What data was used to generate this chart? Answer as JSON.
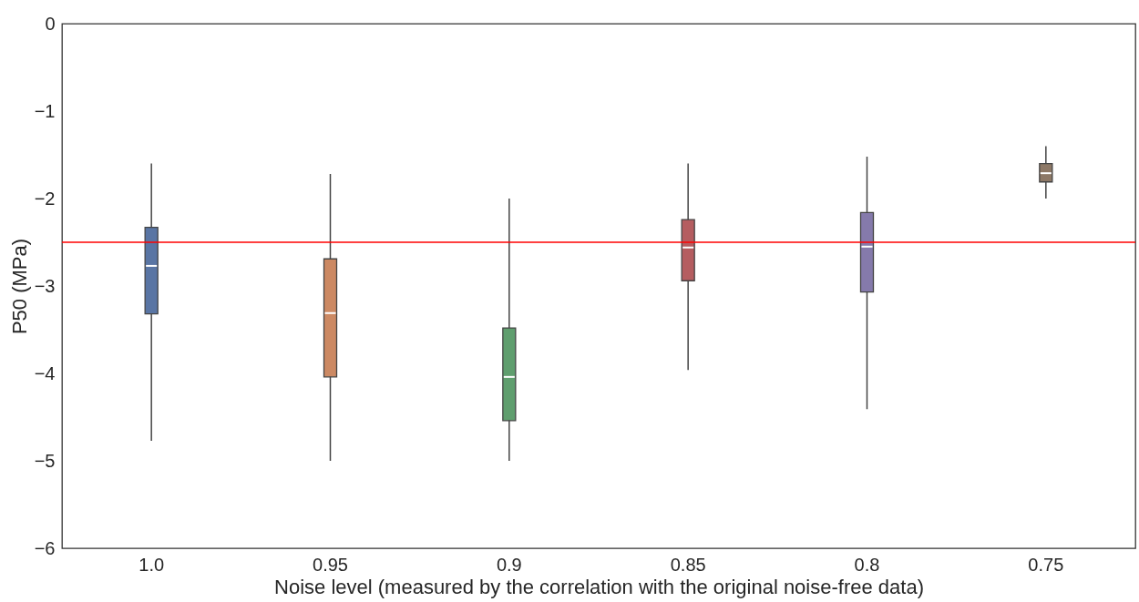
{
  "chart_data": {
    "type": "box",
    "xlabel": "Noise level (measured by the correlation with the original noise-free data)",
    "ylabel": "P50 (MPa)",
    "categories": [
      "1.0",
      "0.95",
      "0.9",
      "0.85",
      "0.8",
      "0.75"
    ],
    "colors": [
      "#5975a4",
      "#cc8963",
      "#5f9e6e",
      "#b55d60",
      "#857aab",
      "#8d7866"
    ],
    "boxes": [
      {
        "low": -4.77,
        "q1": -3.32,
        "median": -2.77,
        "q3": -2.33,
        "high": -1.6
      },
      {
        "low": -5.0,
        "q1": -4.04,
        "median": -3.31,
        "q3": -2.69,
        "high": -1.72
      },
      {
        "low": -5.0,
        "q1": -4.54,
        "median": -4.04,
        "q3": -3.48,
        "high": -2.0
      },
      {
        "low": -3.96,
        "q1": -2.94,
        "median": -2.56,
        "q3": -2.24,
        "high": -1.6
      },
      {
        "low": -4.41,
        "q1": -3.07,
        "median": -2.55,
        "q3": -2.16,
        "high": -1.52
      },
      {
        "low": -2.0,
        "q1": -1.81,
        "median": -1.71,
        "q3": -1.6,
        "high": -1.4
      }
    ],
    "ylim": [
      -6,
      0
    ],
    "yticks": [
      -6,
      -5,
      -4,
      -3,
      -2,
      -1,
      0
    ],
    "ref_lines": [
      {
        "axis": "y",
        "value": -2.5,
        "color": "#ff0000"
      }
    ],
    "grid": false
  }
}
